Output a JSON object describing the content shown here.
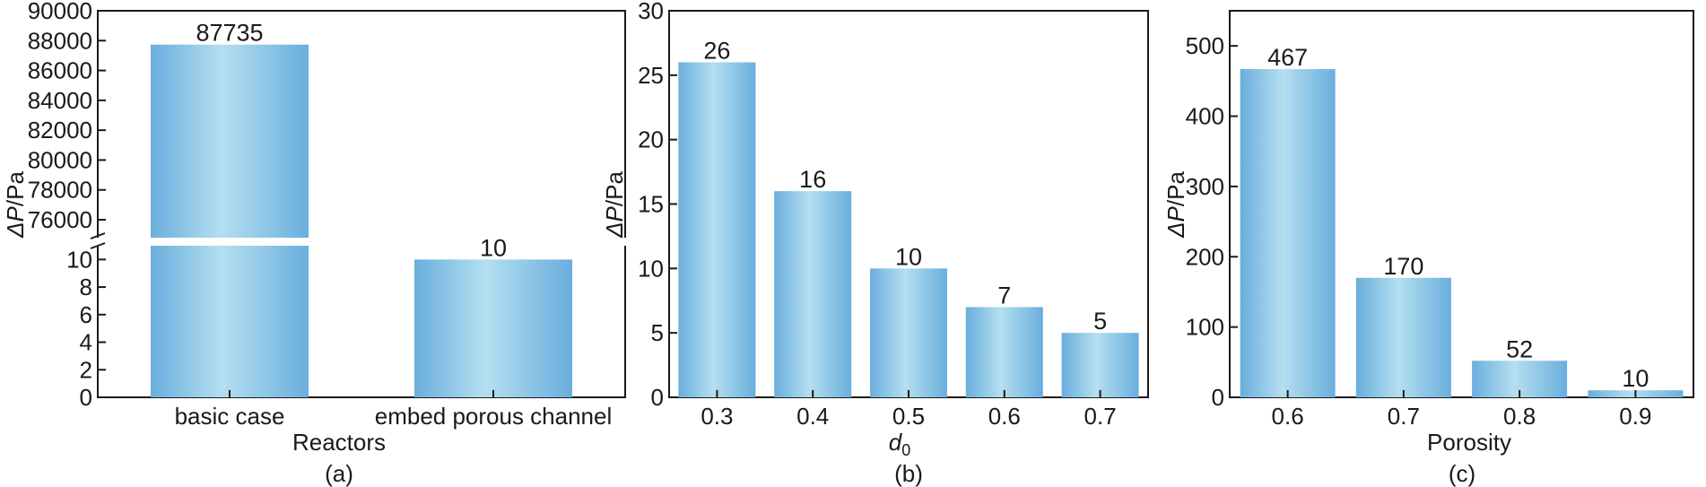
{
  "colors": {
    "bar_edge": "#6aaedd",
    "bar_center": "#b4dff0",
    "axis": "#1a1a1a",
    "background": "#ffffff"
  },
  "chart_data": [
    {
      "type": "bar",
      "panel_label": "(a)",
      "xlabel": "Reactors",
      "ylabel_symbol": "ΔP",
      "ylabel_unit": "/Pa",
      "categories": [
        "basic case",
        "embed porous channel"
      ],
      "values": [
        87735,
        10
      ],
      "data_labels": [
        "87735",
        "10"
      ],
      "broken_axis": true,
      "ylim_lower": [
        0,
        11
      ],
      "ylim_upper": [
        74800,
        90000
      ],
      "yticks_lower": [
        "0",
        "2",
        "4",
        "6",
        "8",
        "10"
      ],
      "yticks_upper": [
        "76000",
        "78000",
        "80000",
        "82000",
        "84000",
        "86000",
        "88000",
        "90000"
      ]
    },
    {
      "type": "bar",
      "panel_label": "(b)",
      "xlabel": "d",
      "xlabel_sub": "0",
      "ylabel_symbol": "ΔP",
      "ylabel_unit": "/Pa",
      "categories": [
        "0.3",
        "0.4",
        "0.5",
        "0.6",
        "0.7"
      ],
      "values": [
        26,
        16,
        10,
        7,
        5
      ],
      "data_labels": [
        "26",
        "16",
        "10",
        "7",
        "5"
      ],
      "ylim": [
        0,
        30
      ],
      "yticks": [
        "0",
        "5",
        "10",
        "15",
        "20",
        "25",
        "30"
      ]
    },
    {
      "type": "bar",
      "panel_label": "(c)",
      "xlabel": "Porosity",
      "ylabel_symbol": "ΔP",
      "ylabel_unit": "/Pa",
      "categories": [
        "0.6",
        "0.7",
        "0.8",
        "0.9"
      ],
      "values": [
        467,
        170,
        52,
        10
      ],
      "data_labels": [
        "467",
        "170",
        "52",
        "10"
      ],
      "ylim": [
        0,
        550
      ],
      "yticks": [
        "0",
        "100",
        "200",
        "300",
        "400",
        "500"
      ]
    }
  ]
}
